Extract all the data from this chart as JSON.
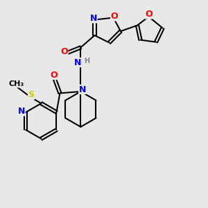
{
  "bg_color": "#e8e8e8",
  "bond_color": "#000000",
  "bond_width": 1.5,
  "atom_colors": {
    "N": "#0000ff",
    "O": "#ff0000",
    "S": "#cccc00",
    "C": "#000000",
    "H": "#888888"
  },
  "font_size": 9
}
